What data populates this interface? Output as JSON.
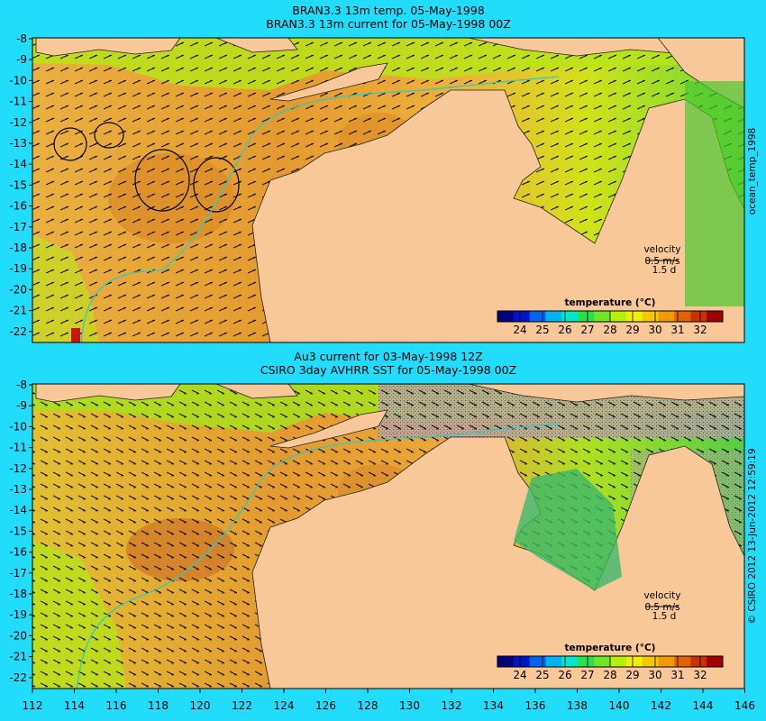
{
  "top_panel": {
    "title_line1": "BRAN3.3 13m temp. 05-May-1998",
    "title_line2": "BRAN3.3 13m current for 05-May-1998 00Z",
    "side_label": "ocean_temp_1998"
  },
  "bottom_panel": {
    "title_line1": "Au3 current for 03-May-1998 12Z",
    "title_line2": "CSIRO 3day AVHRR SST for 05-May-1998 00Z",
    "side_label": "© CSIRO 2012  13-Jun-2012 12:59:19"
  },
  "velocity_key": {
    "label": "velocity",
    "speed": "0.5 m/s",
    "duration": "1.5 d"
  },
  "colorbar": {
    "title": "temperature (°C)",
    "ticks": [
      "24",
      "25",
      "26",
      "27",
      "28",
      "29",
      "30",
      "31",
      "32"
    ],
    "colors": [
      "#00007a",
      "#0014c8",
      "#0064f0",
      "#00b4f0",
      "#00e8c8",
      "#28e050",
      "#6ee628",
      "#b4f00a",
      "#f0f000",
      "#f5c800",
      "#f09b00",
      "#e06400",
      "#c83200",
      "#a00000"
    ]
  },
  "axes": {
    "lat_labels": [
      "-8",
      "-9",
      "-10",
      "-11",
      "-12",
      "-13",
      "-14",
      "-15",
      "-16",
      "-17",
      "-18",
      "-19",
      "-20",
      "-21",
      "-22"
    ],
    "lon_labels": [
      "112",
      "114",
      "116",
      "118",
      "120",
      "122",
      "124",
      "126",
      "128",
      "130",
      "132",
      "134",
      "136",
      "138",
      "140",
      "142",
      "144",
      "146"
    ]
  },
  "colors": {
    "background": "#22dcfc",
    "land": "#f8c898",
    "warm_sea": "#ea9a2a",
    "cool_sea": "#a6e60a",
    "cloud": "#b4a09a"
  }
}
